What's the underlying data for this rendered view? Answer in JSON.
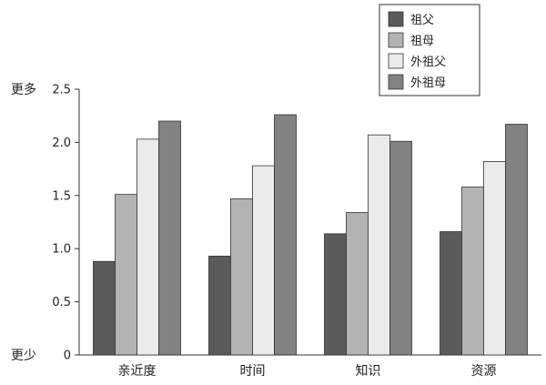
{
  "chart_data": {
    "type": "bar",
    "categories": [
      "亲近度",
      "时间",
      "知识",
      "资源"
    ],
    "series": [
      {
        "name": "祖父",
        "values": [
          0.88,
          0.93,
          1.14,
          1.16
        ],
        "color": "#5b5b5b"
      },
      {
        "name": "祖母",
        "values": [
          1.51,
          1.47,
          1.34,
          1.58
        ],
        "color": "#b3b3b3"
      },
      {
        "name": "外祖父",
        "values": [
          2.03,
          1.78,
          2.07,
          1.82
        ],
        "color": "#ebebeb"
      },
      {
        "name": "外祖母",
        "values": [
          2.2,
          2.26,
          2.01,
          2.17
        ],
        "color": "#828282"
      }
    ],
    "ylim": [
      0,
      2.5
    ],
    "yticks": [
      "0",
      "0.5",
      "1.0",
      "1.5",
      "2.0",
      "2.5"
    ],
    "y_high_label": "更多",
    "y_low_label": "更少",
    "grid": false,
    "legend_position": "top-right"
  }
}
